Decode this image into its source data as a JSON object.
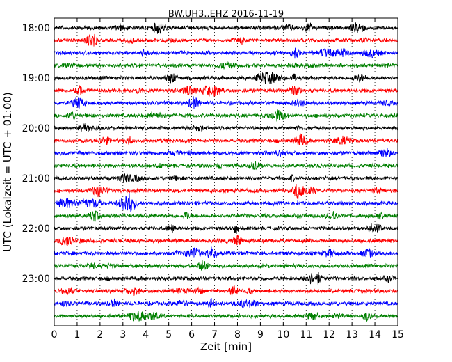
{
  "chart_data": {
    "type": "line",
    "title": "BW.UH3..EHZ 2016-11-19",
    "xlabel": "Zeit  [min]",
    "ylabel": "UTC (Lokalzeit = UTC + 01:00)",
    "xlim": [
      0,
      15
    ],
    "x_ticks": [
      "0",
      "1",
      "2",
      "3",
      "4",
      "5",
      "6",
      "7",
      "8",
      "9",
      "10",
      "11",
      "12",
      "13",
      "14",
      "15"
    ],
    "y_tick_labels": [
      "18:00",
      "19:00",
      "20:00",
      "21:00",
      "22:00",
      "23:00"
    ],
    "grid": "vertical dotted at each minute",
    "trace_colors": [
      "#000000",
      "#ff0000",
      "#0000ff",
      "#008000"
    ],
    "traces": [
      {
        "start": "18:00",
        "color": "#000000"
      },
      {
        "start": "18:15",
        "color": "#ff0000"
      },
      {
        "start": "18:30",
        "color": "#0000ff"
      },
      {
        "start": "18:45",
        "color": "#008000"
      },
      {
        "start": "19:00",
        "color": "#000000"
      },
      {
        "start": "19:15",
        "color": "#ff0000"
      },
      {
        "start": "19:30",
        "color": "#0000ff"
      },
      {
        "start": "19:45",
        "color": "#008000"
      },
      {
        "start": "20:00",
        "color": "#000000"
      },
      {
        "start": "20:15",
        "color": "#ff0000"
      },
      {
        "start": "20:30",
        "color": "#0000ff"
      },
      {
        "start": "20:45",
        "color": "#008000"
      },
      {
        "start": "21:00",
        "color": "#000000"
      },
      {
        "start": "21:15",
        "color": "#ff0000"
      },
      {
        "start": "21:30",
        "color": "#0000ff"
      },
      {
        "start": "21:45",
        "color": "#008000"
      },
      {
        "start": "22:00",
        "color": "#000000"
      },
      {
        "start": "22:15",
        "color": "#ff0000"
      },
      {
        "start": "22:30",
        "color": "#0000ff"
      },
      {
        "start": "22:45",
        "color": "#008000"
      },
      {
        "start": "23:00",
        "color": "#000000"
      },
      {
        "start": "23:15",
        "color": "#ff0000"
      },
      {
        "start": "23:30",
        "color": "#0000ff"
      },
      {
        "start": "23:45",
        "color": "#008000"
      }
    ]
  }
}
